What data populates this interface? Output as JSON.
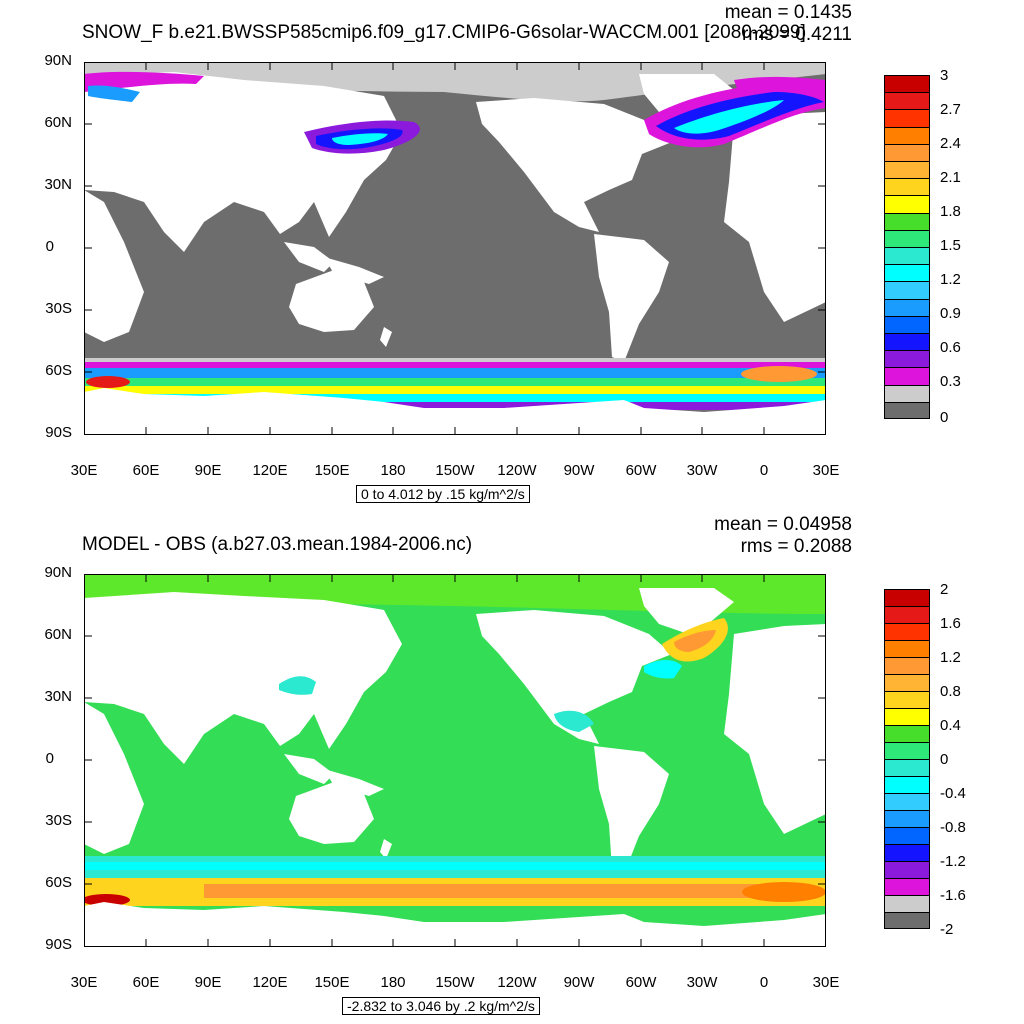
{
  "colors": {
    "land": "#ffffff",
    "missing_dark": "#6d6d6d",
    "missing_light": "#cccccc",
    "diff_zero": "#33dd55"
  },
  "top_panel": {
    "title": "SNOW_F b.e21.BWSSP585cmip6.f09_g17.CMIP6-G6solar-WACCM.001 [2080-2099]",
    "mean_text": "mean = 0.1435",
    "rms_text": "rms = 0.4211",
    "range_text": "0 to 4.012 by .15 kg/m^2/s",
    "lat_labels": [
      "90N",
      "60N",
      "30N",
      "0",
      "30S",
      "60S",
      "90S"
    ],
    "lon_labels": [
      "30E",
      "60E",
      "90E",
      "120E",
      "150E",
      "180",
      "150W",
      "120W",
      "90W",
      "60W",
      "30W",
      "0",
      "30E"
    ],
    "colorbar": {
      "labels": [
        "3",
        "2.7",
        "2.4",
        "2.1",
        "1.8",
        "1.5",
        "1.2",
        "0.9",
        "0.6",
        "0.3",
        "0"
      ],
      "colors": [
        "#c80000",
        "#e61919",
        "#ff3300",
        "#ff7f00",
        "#ff9933",
        "#ffb533",
        "#ffd41e",
        "#ffff00",
        "#46dd2b",
        "#2ee87a",
        "#2be8d0",
        "#00ffff",
        "#33ccff",
        "#1a9cff",
        "#0066ff",
        "#1414ff",
        "#8c1adc",
        "#dc14dc",
        "#cccccc",
        "#6d6d6d"
      ]
    }
  },
  "bottom_panel": {
    "title": "MODEL - OBS (a.b27.03.mean.1984-2006.nc)",
    "mean_text": "mean = 0.04958",
    "rms_text": "rms = 0.2088",
    "range_text": "-2.832 to 3.046 by .2 kg/m^2/s",
    "lat_labels": [
      "90N",
      "60N",
      "30N",
      "0",
      "30S",
      "60S",
      "90S"
    ],
    "lon_labels": [
      "30E",
      "60E",
      "90E",
      "120E",
      "150E",
      "180",
      "150W",
      "120W",
      "90W",
      "60W",
      "30W",
      "0",
      "30E"
    ],
    "colorbar": {
      "labels": [
        "2",
        "1.6",
        "1.2",
        "0.8",
        "0.4",
        "0",
        "-0.4",
        "-0.8",
        "-1.2",
        "-1.6",
        "-2"
      ],
      "colors": [
        "#c80000",
        "#e61919",
        "#ff3300",
        "#ff7f00",
        "#ff9933",
        "#ffb533",
        "#ffd41e",
        "#ffff00",
        "#46dd2b",
        "#2ee87a",
        "#2be8d0",
        "#00ffff",
        "#33ccff",
        "#1a9cff",
        "#0066ff",
        "#1414ff",
        "#8c1adc",
        "#dc14dc",
        "#cccccc",
        "#6d6d6d"
      ]
    }
  }
}
